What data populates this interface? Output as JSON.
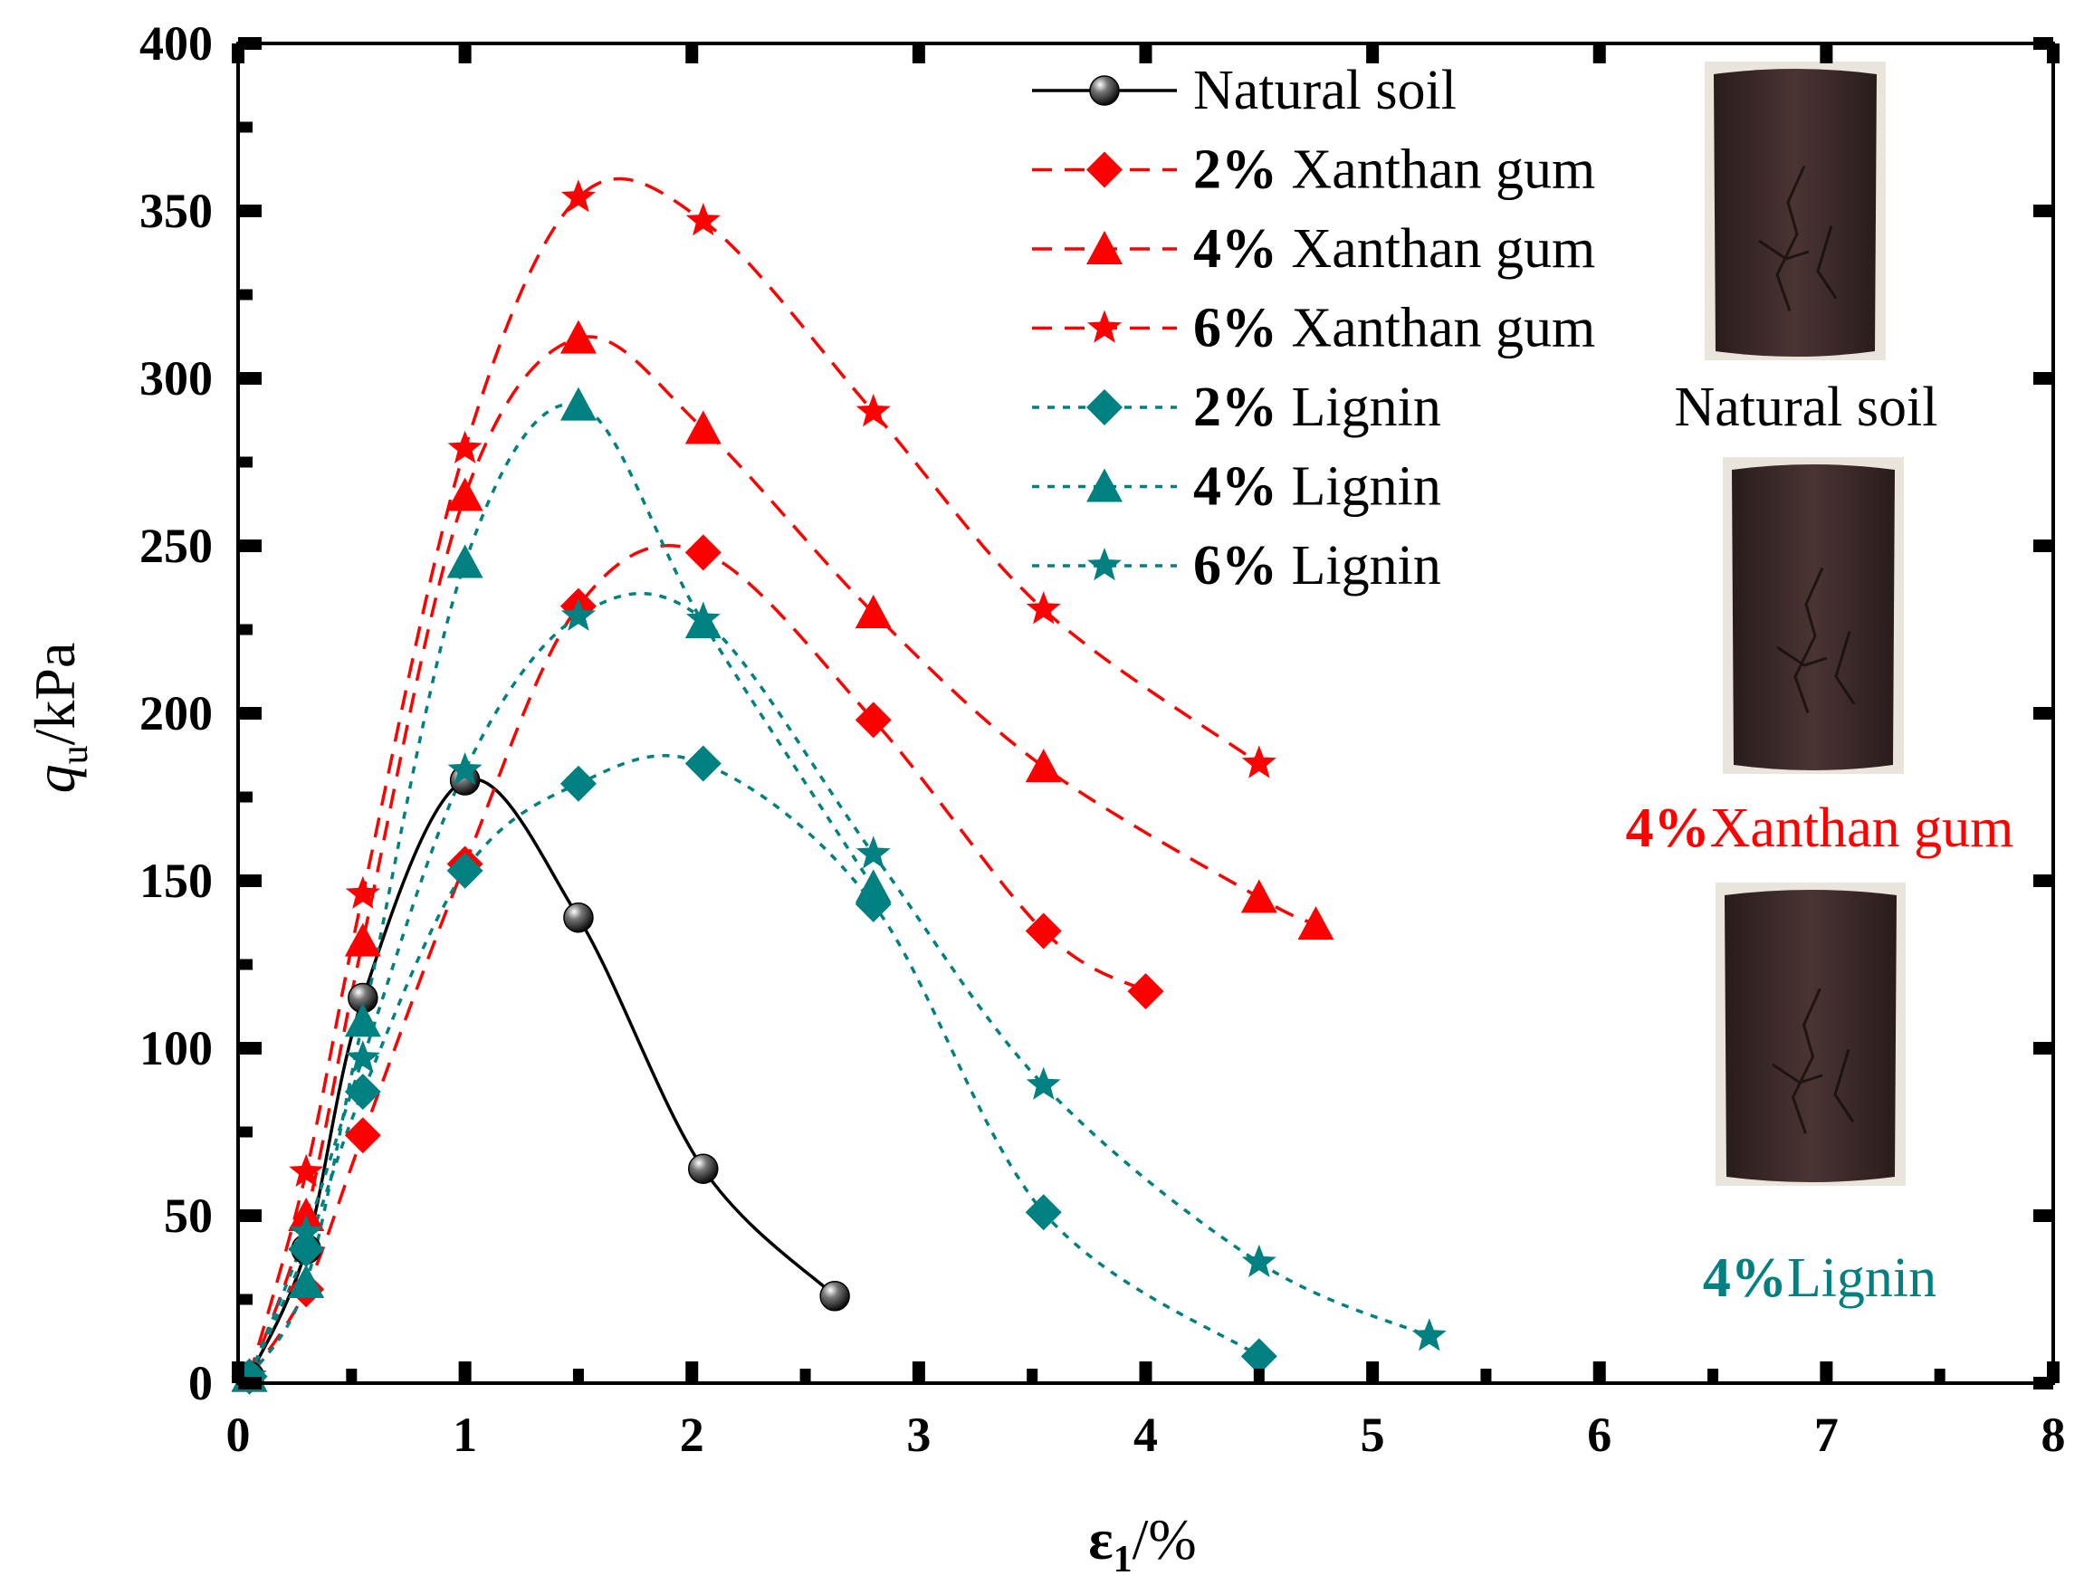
{
  "chart_data": {
    "type": "line",
    "xlabel": "ε1/%",
    "xlabel_main": "ε",
    "xlabel_sub": "1",
    "xlabel_unit": "/%",
    "ylabel": "qu/kPa",
    "ylabel_main": "q",
    "ylabel_sub": "u",
    "ylabel_unit": "/kPa",
    "xlim": [
      0,
      8
    ],
    "ylim": [
      0,
      400
    ],
    "x_ticks": [
      0,
      1,
      2,
      3,
      4,
      5,
      6,
      7,
      8
    ],
    "y_ticks": [
      0,
      50,
      100,
      150,
      200,
      250,
      300,
      350,
      400
    ],
    "legend_position": "top-right",
    "series": [
      {
        "name": "Natural soil",
        "bold": "",
        "rest": "Natural soil",
        "color": "#000000",
        "marker": "sphere",
        "line": "solid",
        "x": [
          0.05,
          0.3,
          0.55,
          1.0,
          1.5,
          2.05,
          2.63
        ],
        "y": [
          2,
          40,
          115,
          180,
          139,
          64,
          26
        ]
      },
      {
        "name": "2% Xanthan gum",
        "bold": "2%",
        "rest": " Xanthan gum",
        "color": "#ff0000",
        "marker": "diamond",
        "line": "dashed",
        "x": [
          0.05,
          0.3,
          0.55,
          1.0,
          1.5,
          2.05,
          2.8,
          3.55,
          4.0
        ],
        "y": [
          2,
          28,
          74,
          155,
          232,
          248,
          198,
          135,
          117
        ]
      },
      {
        "name": "4% Xanthan gum",
        "bold": "4%",
        "rest": " Xanthan gum",
        "color": "#ff0000",
        "marker": "triangle",
        "line": "dashed",
        "x": [
          0.05,
          0.3,
          0.55,
          1.0,
          1.5,
          2.05,
          2.8,
          3.55,
          4.5,
          4.75
        ],
        "y": [
          2,
          50,
          132,
          265,
          312,
          285,
          230,
          184,
          145,
          137
        ]
      },
      {
        "name": "6% Xanthan gum",
        "bold": "6%",
        "rest": " Xanthan gum",
        "color": "#ff0000",
        "marker": "star",
        "line": "dashed",
        "x": [
          0.05,
          0.3,
          0.55,
          1.0,
          1.5,
          2.05,
          2.8,
          3.55,
          4.5
        ],
        "y": [
          2,
          63,
          146,
          279,
          354,
          347,
          290,
          231,
          185
        ]
      },
      {
        "name": "2% Lignin",
        "bold": "2%",
        "rest": " Lignin",
        "color": "#008080",
        "marker": "diamond",
        "line": "dotted",
        "x": [
          0.05,
          0.3,
          0.55,
          1.0,
          1.5,
          2.05,
          2.8,
          3.55,
          4.5
        ],
        "y": [
          2,
          40,
          87,
          153,
          179,
          185,
          143,
          51,
          8
        ]
      },
      {
        "name": "4% Lignin",
        "bold": "4%",
        "rest": " Lignin",
        "color": "#008080",
        "marker": "triangle",
        "line": "dotted",
        "x": [
          0.05,
          0.3,
          0.55,
          1.0,
          1.5,
          2.05,
          2.8
        ],
        "y": [
          2,
          30,
          108,
          245,
          292,
          227,
          148
        ]
      },
      {
        "name": "6% Lignin",
        "bold": "6%",
        "rest": " Lignin",
        "color": "#008080",
        "marker": "star",
        "line": "dotted",
        "x": [
          0.05,
          0.3,
          0.55,
          1.0,
          1.5,
          2.05,
          2.8,
          3.55,
          4.5,
          5.25
        ],
        "y": [
          2,
          45,
          97,
          183,
          229,
          228,
          158,
          89,
          36,
          14
        ]
      }
    ],
    "photos": [
      {
        "label_bold": "",
        "label_rest": "Natural soil",
        "color": "#000000"
      },
      {
        "label_bold": "4%",
        "label_rest": "Xanthan gum",
        "color": "#ff0000"
      },
      {
        "label_bold": "4%",
        "label_rest": "Lignin",
        "color": "#008080"
      }
    ]
  }
}
